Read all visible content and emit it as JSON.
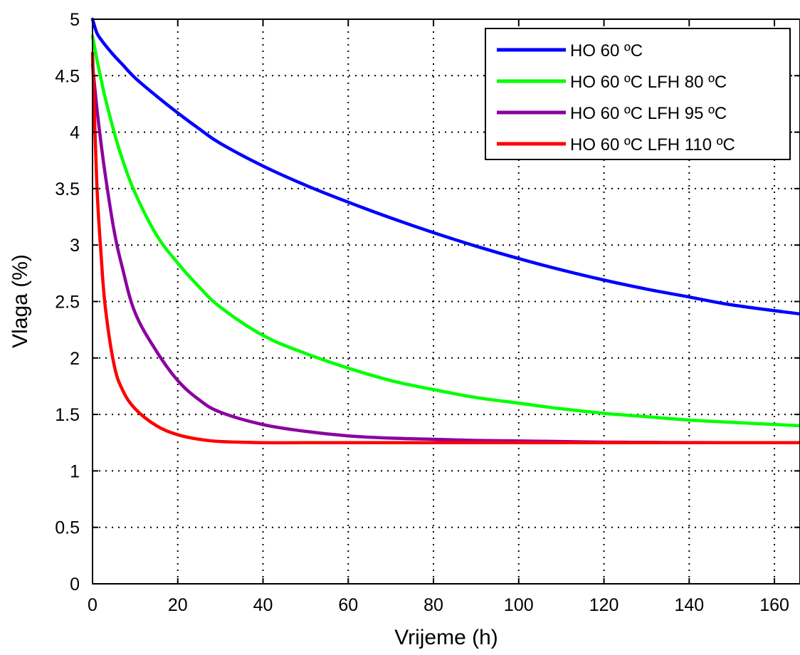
{
  "chart_data": {
    "type": "line",
    "title": "",
    "xlabel": "Vrijeme (h)",
    "ylabel": "Vlaga (%)",
    "xlim": [
      0,
      166
    ],
    "ylim": [
      0,
      5
    ],
    "xticks": [
      0,
      20,
      40,
      60,
      80,
      100,
      120,
      140,
      160
    ],
    "xtick_labels": [
      "0",
      "20",
      "40",
      "60",
      "80",
      "100",
      "120",
      "140",
      "160"
    ],
    "yticks": [
      0,
      0.5,
      1,
      1.5,
      2,
      2.5,
      3,
      3.5,
      4,
      4.5,
      5
    ],
    "ytick_labels": [
      "0",
      "0.5",
      "1",
      "1.5",
      "2",
      "2.5",
      "3",
      "3.5",
      "4",
      "4.5",
      "5"
    ],
    "grid": true,
    "legend_position": "top-right",
    "x": [
      0,
      1,
      2,
      3,
      5,
      7,
      10,
      15,
      20,
      25,
      30,
      40,
      50,
      60,
      70,
      80,
      90,
      100,
      110,
      120,
      130,
      140,
      150,
      166
    ],
    "series": [
      {
        "name": "HO 60 ºC",
        "color": "#0000ff",
        "values": [
          5.0,
          4.88,
          4.82,
          4.77,
          4.68,
          4.6,
          4.48,
          4.32,
          4.17,
          4.03,
          3.9,
          3.7,
          3.53,
          3.38,
          3.24,
          3.11,
          2.99,
          2.88,
          2.78,
          2.69,
          2.61,
          2.54,
          2.47,
          2.39
        ]
      },
      {
        "name": "HO 60 ºC LFH 80 ºC",
        "color": "#00ff00",
        "values": [
          4.85,
          4.65,
          4.47,
          4.3,
          4.01,
          3.76,
          3.46,
          3.09,
          2.84,
          2.63,
          2.45,
          2.2,
          2.04,
          1.91,
          1.8,
          1.72,
          1.65,
          1.6,
          1.55,
          1.51,
          1.48,
          1.45,
          1.43,
          1.4
        ]
      },
      {
        "name": "HO 60 ºC LFH 95 ºC",
        "color": "#8b00a0",
        "values": [
          4.6,
          4.22,
          3.9,
          3.62,
          3.14,
          2.8,
          2.4,
          2.06,
          1.8,
          1.63,
          1.52,
          1.41,
          1.35,
          1.31,
          1.29,
          1.28,
          1.27,
          1.265,
          1.26,
          1.255,
          1.253,
          1.251,
          1.25,
          1.25
        ]
      },
      {
        "name": "HO 60 ºC LFH 110 ºC",
        "color": "#ff0000",
        "values": [
          4.7,
          3.55,
          2.92,
          2.45,
          1.95,
          1.72,
          1.55,
          1.4,
          1.32,
          1.28,
          1.26,
          1.25,
          1.25,
          1.25,
          1.25,
          1.25,
          1.25,
          1.25,
          1.25,
          1.25,
          1.25,
          1.25,
          1.25,
          1.25
        ]
      }
    ]
  }
}
